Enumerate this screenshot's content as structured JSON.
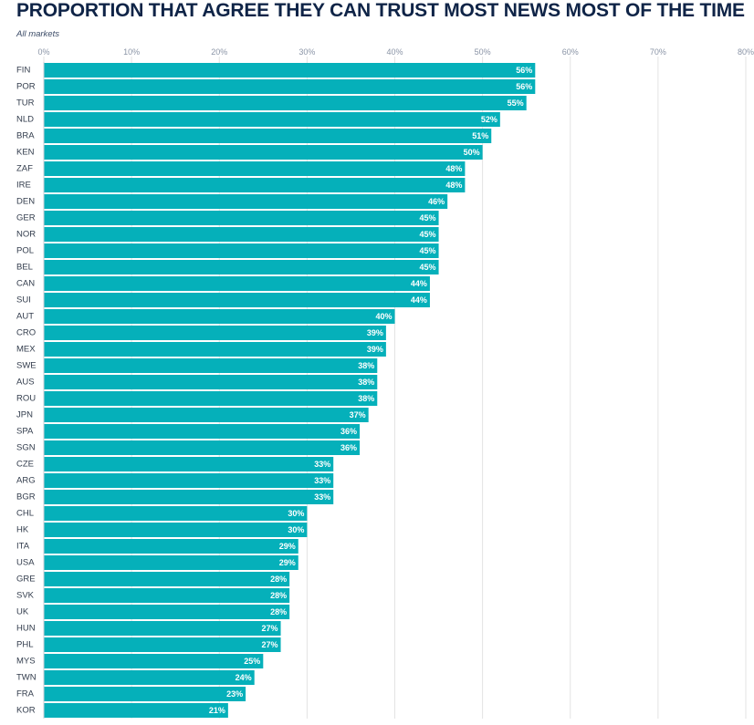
{
  "title": "PROPORTION THAT AGREE THEY CAN TRUST MOST NEWS MOST OF THE TIME",
  "subtitle": "All markets",
  "colors": {
    "bar": "#05b0ba",
    "grid": "#e3e3e3",
    "axis_text": "#8a94a6",
    "label_text": "#333d4d",
    "value_text": "#ffffff"
  },
  "chart_data": {
    "type": "bar",
    "orientation": "horizontal",
    "title": "PROPORTION THAT AGREE THEY CAN TRUST MOST NEWS MOST OF THE TIME",
    "subtitle": "All markets",
    "xlim": [
      0,
      80
    ],
    "x_ticks": [
      "0%",
      "10%",
      "20%",
      "30%",
      "40%",
      "50%",
      "60%",
      "70%",
      "80%"
    ],
    "x_tick_values": [
      0,
      10,
      20,
      30,
      40,
      50,
      60,
      70,
      80
    ],
    "grid": true,
    "categories": [
      "FIN",
      "POR",
      "TUR",
      "NLD",
      "BRA",
      "KEN",
      "ZAF",
      "IRE",
      "DEN",
      "GER",
      "NOR",
      "POL",
      "BEL",
      "CAN",
      "SUI",
      "AUT",
      "CRO",
      "MEX",
      "SWE",
      "AUS",
      "ROU",
      "JPN",
      "SPA",
      "SGN",
      "CZE",
      "ARG",
      "BGR",
      "CHL",
      "HK",
      "ITA",
      "USA",
      "GRE",
      "SVK",
      "UK",
      "HUN",
      "PHL",
      "MYS",
      "TWN",
      "FRA",
      "KOR"
    ],
    "values": [
      56,
      56,
      55,
      52,
      51,
      50,
      48,
      48,
      46,
      45,
      45,
      45,
      45,
      44,
      44,
      40,
      39,
      39,
      38,
      38,
      38,
      37,
      36,
      36,
      33,
      33,
      33,
      30,
      30,
      29,
      29,
      28,
      28,
      28,
      27,
      27,
      25,
      24,
      23,
      21
    ],
    "value_labels": [
      "56%",
      "56%",
      "55%",
      "52%",
      "51%",
      "50%",
      "48%",
      "48%",
      "46%",
      "45%",
      "45%",
      "45%",
      "45%",
      "44%",
      "44%",
      "40%",
      "39%",
      "39%",
      "38%",
      "38%",
      "38%",
      "37%",
      "36%",
      "36%",
      "33%",
      "33%",
      "33%",
      "30%",
      "30%",
      "29%",
      "29%",
      "28%",
      "28%",
      "28%",
      "27%",
      "27%",
      "25%",
      "24%",
      "23%",
      "21%"
    ]
  }
}
